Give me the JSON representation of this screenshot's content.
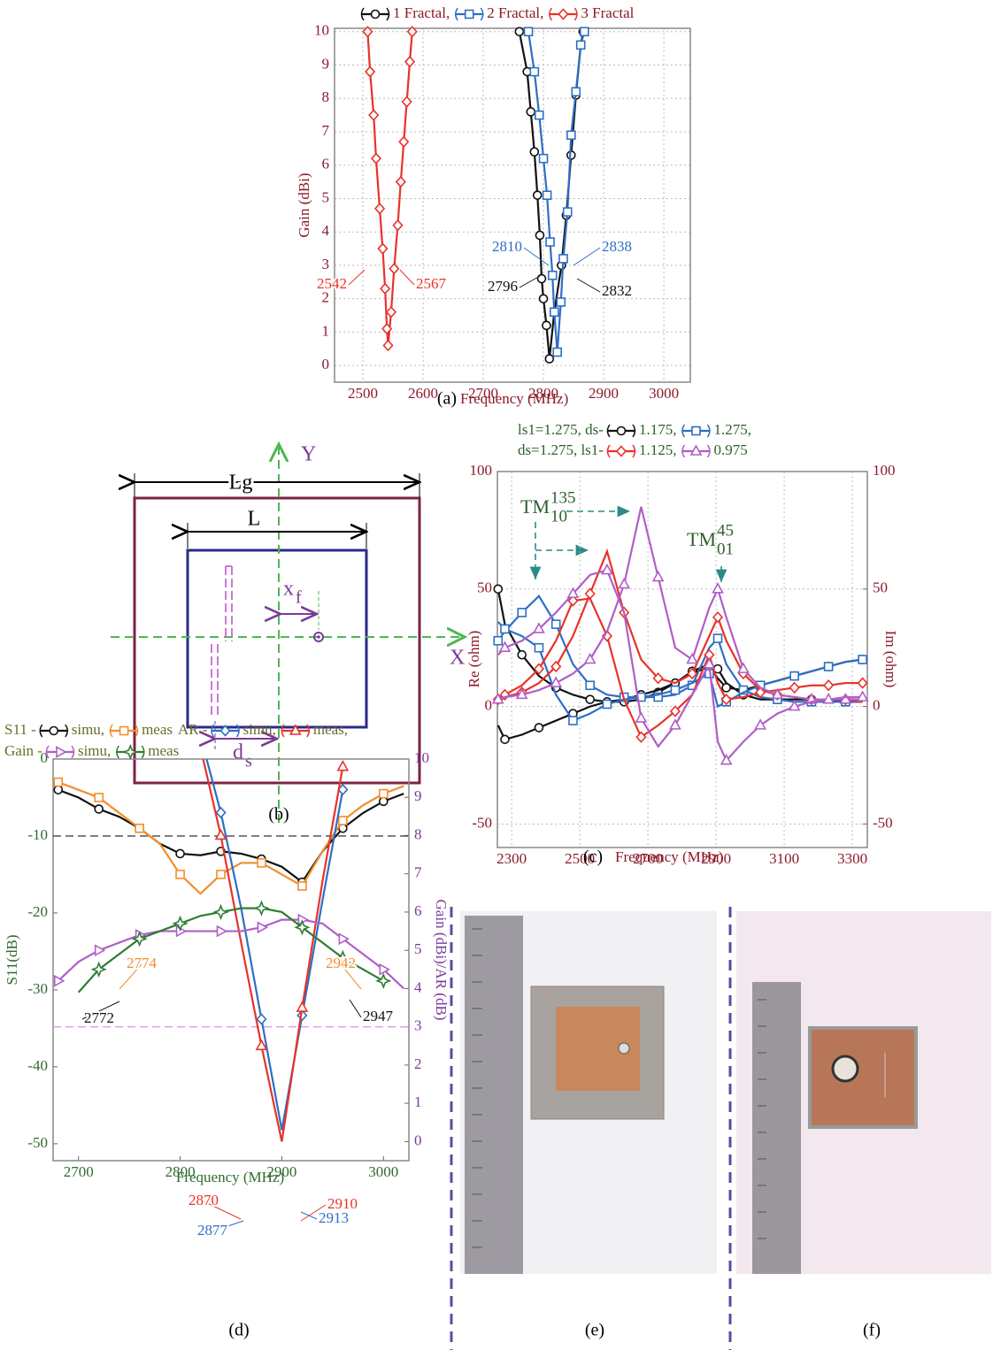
{
  "chart_data": [
    {
      "type": "line",
      "caption": "(a)",
      "xlabel": "Frequency (MHz)",
      "ylabel": "Gain (dBi)",
      "xlim": [
        2453,
        3044
      ],
      "xticks": [
        2500,
        2600,
        2700,
        2800,
        2900,
        3000
      ],
      "ylim": [
        -0.5,
        10.1
      ],
      "yticks": [
        0,
        1,
        2,
        3,
        4,
        5,
        6,
        7,
        8,
        9,
        10
      ],
      "grid": true,
      "axis_color": "#8b1a2a",
      "legend_color": "#8b1a2a",
      "series": [
        {
          "name": "1 Fractal,",
          "color": "#111111",
          "marker": "circle",
          "x": [
            2760,
            2773,
            2779,
            2785,
            2790,
            2794,
            2797,
            2800,
            2805,
            2810,
            2818,
            2830,
            2838,
            2846,
            2854,
            2862,
            2866
          ],
          "values": [
            10,
            8.8,
            7.6,
            6.4,
            5.1,
            3.9,
            2.6,
            2,
            1.2,
            0.2,
            1.6,
            3,
            4.5,
            6.3,
            8.1,
            9.6,
            10
          ]
        },
        {
          "name": "2 Fractal,",
          "color": "#2e6fc4",
          "marker": "square",
          "x": [
            2775,
            2785,
            2793,
            2800,
            2806,
            2811,
            2815,
            2818,
            2823,
            2829,
            2833,
            2840,
            2846,
            2854,
            2862,
            2868
          ],
          "values": [
            10,
            8.8,
            7.5,
            6.2,
            5.1,
            3.7,
            2.7,
            1.6,
            0.4,
            1.9,
            3.2,
            4.6,
            6.9,
            8.2,
            9.6,
            10
          ]
        },
        {
          "name": "3 Fractal",
          "color": "#e8322a",
          "marker": "diamond",
          "x": [
            2508,
            2512,
            2518,
            2522,
            2528,
            2533,
            2537,
            2540,
            2542,
            2547,
            2552,
            2558,
            2563,
            2568,
            2573,
            2578,
            2582
          ],
          "values": [
            10,
            8.8,
            7.5,
            6.2,
            4.7,
            3.5,
            2.3,
            1.1,
            0.6,
            1.6,
            2.9,
            4.2,
            5.5,
            6.7,
            7.9,
            9.1,
            10
          ]
        }
      ],
      "annotations": [
        {
          "text": "2542",
          "color": "#e8322a"
        },
        {
          "text": "2567",
          "color": "#e8322a"
        },
        {
          "text": "2810",
          "color": "#2e6fc4"
        },
        {
          "text": "2838",
          "color": "#2e6fc4"
        },
        {
          "text": "2796",
          "color": "#111111"
        },
        {
          "text": "2832",
          "color": "#111111"
        }
      ]
    },
    {
      "type": "line",
      "caption": "(c)",
      "xlabel": "Frequency (MHz)",
      "ylabel": "Re (ohm)",
      "y2label": "Im (ohm)",
      "xlim": [
        2258,
        3344
      ],
      "xticks": [
        2300,
        2500,
        2700,
        2900,
        3100,
        3300
      ],
      "ylim": [
        -60,
        100
      ],
      "yticks": [
        -50,
        0,
        50,
        100
      ],
      "y2lim": [
        -60,
        100
      ],
      "y2ticks": [
        -50,
        0,
        50,
        100
      ],
      "grid": true,
      "axis_color": "#8b1a2a",
      "y2_axis_color": "#8b1a2a",
      "legend_color": "#2f5f2f",
      "legend_prefixes": [
        "ls1=1.275, ds-",
        "ds=1.275, ls1-"
      ],
      "x": [
        2260,
        2280,
        2330,
        2380,
        2430,
        2480,
        2530,
        2580,
        2630,
        2680,
        2730,
        2780,
        2830,
        2880,
        2905,
        2930,
        2980,
        3030,
        3080,
        3130,
        3180,
        3230,
        3280,
        3330
      ],
      "series": [
        {
          "name": "1.175,",
          "color": "#111111",
          "marker": "circle",
          "values": [
            50,
            35,
            22,
            13,
            8,
            5,
            3,
            2,
            2,
            3,
            6,
            10,
            15,
            18,
            16,
            10,
            5,
            3,
            3,
            3,
            3,
            3,
            2,
            2
          ],
          "im_values": [
            -8,
            -14,
            -12,
            -9,
            -6,
            -3,
            0,
            2,
            3,
            5,
            7,
            10,
            14,
            17,
            12,
            8,
            7,
            9,
            11,
            13,
            15,
            17,
            19,
            20
          ]
        },
        {
          "name": "1.275,",
          "color": "#2e6fc4",
          "marker": "square",
          "values": [
            28,
            32,
            40,
            47,
            35,
            18,
            9,
            5,
            4,
            4,
            4,
            5,
            9,
            25,
            29,
            18,
            7,
            4,
            3,
            2,
            2,
            2,
            2,
            2
          ],
          "im_values": [
            36,
            33,
            30,
            25,
            5,
            -6,
            -3,
            1,
            3,
            4,
            5,
            7,
            10,
            14,
            0,
            2,
            6,
            9,
            11,
            13,
            15,
            17,
            19,
            20
          ]
        },
        {
          "name": "1.125,",
          "color": "#e8322a",
          "marker": "diamond",
          "values": [
            3,
            4,
            6,
            10,
            17,
            30,
            48,
            66,
            40,
            20,
            12,
            10,
            14,
            30,
            38,
            28,
            14,
            7,
            5,
            4,
            3,
            3,
            3,
            2
          ],
          "im_values": [
            3,
            5,
            9,
            16,
            28,
            45,
            46,
            30,
            3,
            -13,
            -8,
            -2,
            5,
            22,
            10,
            3,
            4,
            6,
            7,
            8,
            9,
            9,
            10,
            10
          ]
        },
        {
          "name": "0.975",
          "color": "#b05ec8",
          "marker": "triangle",
          "values": [
            3,
            4,
            5,
            7,
            10,
            14,
            20,
            32,
            52,
            85,
            55,
            25,
            20,
            42,
            50,
            38,
            16,
            8,
            5,
            4,
            3,
            3,
            3,
            3
          ],
          "im_values": [
            22,
            25,
            28,
            33,
            40,
            48,
            56,
            58,
            40,
            -5,
            -17,
            -8,
            5,
            18,
            -15,
            -23,
            -15,
            -8,
            -3,
            0,
            2,
            3,
            4,
            4
          ]
        }
      ],
      "annotations": [
        {
          "text": "TM",
          "sub": "10",
          "sup": "135",
          "color": "#2f5f2f"
        },
        {
          "text": "TM",
          "sub": "01",
          "sup": "45",
          "color": "#2f5f2f"
        }
      ]
    },
    {
      "type": "line",
      "caption": "(d)",
      "xlabel": "Frequency (MHz)",
      "ylabel": "S11(dB)",
      "y2label": "Gain (dBi)/AR (dB)",
      "xlim": [
        2675,
        3025
      ],
      "xticks": [
        2700,
        2800,
        2900,
        3000
      ],
      "ylim": [
        -52.2,
        0
      ],
      "yticks": [
        0,
        -10,
        -20,
        -30,
        -40,
        -50
      ],
      "y2lim": [
        -0.5,
        10
      ],
      "y2ticks": [
        0,
        1,
        2,
        3,
        4,
        5,
        6,
        7,
        8,
        9,
        10
      ],
      "grid": false,
      "axis_color": "#2e6b2e",
      "y2_axis_color": "#7a3a9a",
      "legend_color": "#6b6b2a",
      "legend_prefixes": [
        "S11 -",
        "AR -",
        "Gain -"
      ],
      "x": [
        2680,
        2700,
        2720,
        2740,
        2760,
        2780,
        2800,
        2820,
        2840,
        2860,
        2880,
        2900,
        2920,
        2940,
        2960,
        2980,
        3000,
        3020
      ],
      "reference_lines": [
        {
          "value": -10,
          "axis": "y",
          "color": "#333333"
        },
        {
          "value": 3,
          "axis": "y2",
          "color": "#d8a0e0"
        }
      ],
      "series": [
        {
          "name": "simu,",
          "color": "#111111",
          "marker": "circle",
          "values": [
            -4,
            -5,
            -6.5,
            -7.5,
            -9,
            -11,
            -12.3,
            -12.5,
            -12,
            -12.3,
            -13,
            -14,
            -16,
            -12,
            -9,
            -7,
            -5.5,
            -4.5
          ]
        },
        {
          "name": "meas",
          "color": "#f28e2b",
          "marker": "square",
          "values": [
            -3,
            -4,
            -5,
            -7,
            -9,
            -11,
            -15,
            -17.5,
            -15,
            -13.5,
            -13.5,
            -15,
            -16.5,
            -12,
            -8,
            -6,
            -4.5,
            -3.5
          ]
        },
        {
          "name": "simu,",
          "color": "#2e6fc4",
          "marker": "diamond",
          "axis": "y2",
          "values": [
            null,
            null,
            null,
            null,
            null,
            null,
            null,
            10.6,
            8.6,
            6.1,
            3.2,
            0.3,
            3.3,
            6.3,
            9.2,
            null,
            null,
            null
          ]
        },
        {
          "name": "meas,",
          "color": "#e8322a",
          "marker": "triangle",
          "axis": "y2",
          "values": [
            null,
            null,
            null,
            null,
            null,
            null,
            null,
            10.3,
            8,
            5.2,
            2.5,
            0,
            3.5,
            6.8,
            9.8,
            null,
            null,
            null
          ]
        },
        {
          "name": "simu,",
          "color": "#b05ec8",
          "marker": "triangle-right",
          "axis": "y2",
          "values": [
            4.2,
            4.7,
            5,
            5.2,
            5.4,
            5.5,
            5.5,
            5.5,
            5.5,
            5.5,
            5.6,
            5.8,
            5.8,
            5.7,
            5.3,
            4.9,
            4.5,
            4.0
          ]
        },
        {
          "name": "meas",
          "color": "#2e7d32",
          "marker": "star",
          "axis": "y2",
          "values": [
            null,
            3.9,
            4.5,
            4.9,
            5.3,
            5.5,
            5.7,
            5.9,
            6,
            6.1,
            6.1,
            6,
            5.6,
            5.2,
            4.8,
            4.5,
            4.2,
            null
          ]
        }
      ],
      "annotations": [
        {
          "text": "2774",
          "color": "#f28e2b"
        },
        {
          "text": "2942",
          "color": "#f28e2b"
        },
        {
          "text": "2772",
          "color": "#111111"
        },
        {
          "text": "2947",
          "color": "#111111"
        },
        {
          "text": "2870",
          "color": "#e8322a"
        },
        {
          "text": "2910",
          "color": "#e8322a"
        },
        {
          "text": "2877",
          "color": "#2e6fc4"
        },
        {
          "text": "2913",
          "color": "#2e6fc4"
        }
      ]
    }
  ],
  "diagram": {
    "caption": "(b)",
    "y_axis": "Y",
    "x_axis": "X",
    "lg": "Lg",
    "l": "L",
    "xf": {
      "text": "x",
      "subscript": "f"
    },
    "ds": {
      "text": "d",
      "subscript": "s"
    }
  },
  "photos": [
    {
      "caption": "(e)"
    },
    {
      "caption": "(f)"
    }
  ]
}
